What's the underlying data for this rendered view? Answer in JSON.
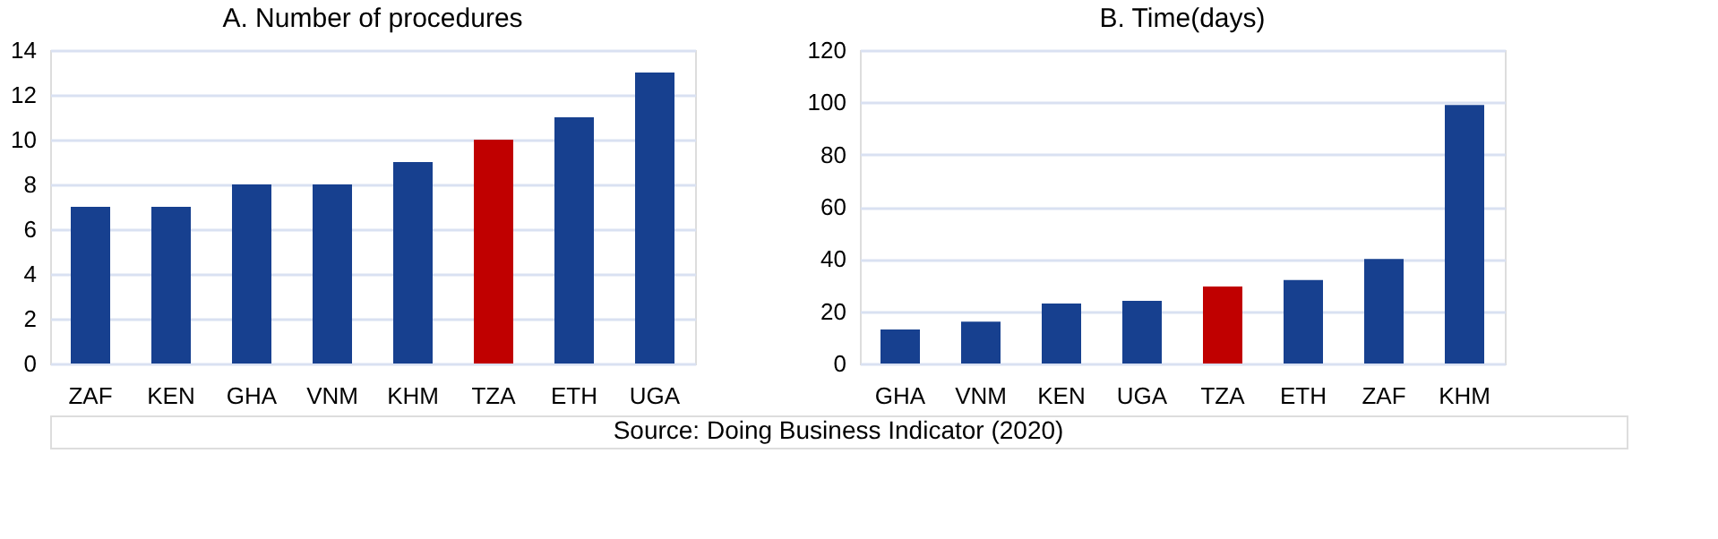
{
  "chart_data": [
    {
      "type": "bar",
      "title": "A.  Number of procedures",
      "categories": [
        "ZAF",
        "KEN",
        "GHA",
        "VNM",
        "KHM",
        "TZA",
        "ETH",
        "UGA"
      ],
      "values": [
        7,
        7,
        8,
        8,
        9,
        10,
        11,
        13
      ],
      "colors": [
        "#17408f",
        "#17408f",
        "#17408f",
        "#17408f",
        "#17408f",
        "#c00000",
        "#17408f",
        "#17408f"
      ],
      "ylim": [
        0,
        14
      ],
      "yticks": [
        0,
        2,
        4,
        6,
        8,
        10,
        12,
        14
      ],
      "grid": "y",
      "annotations": [
        "Source: Doing Business Indicator (2020)"
      ]
    },
    {
      "type": "bar",
      "title": "B.  Time(days)",
      "categories": [
        "GHA",
        "VNM",
        "KEN",
        "UGA",
        "TZA",
        "ETH",
        "ZAF",
        "KHM"
      ],
      "values": [
        13,
        16,
        23,
        24,
        29.5,
        32,
        40,
        99
      ],
      "colors": [
        "#17408f",
        "#17408f",
        "#17408f",
        "#17408f",
        "#c00000",
        "#17408f",
        "#17408f",
        "#17408f"
      ],
      "ylim": [
        0,
        120
      ],
      "yticks": [
        0,
        20,
        40,
        60,
        80,
        100,
        120
      ],
      "grid": "y"
    }
  ]
}
